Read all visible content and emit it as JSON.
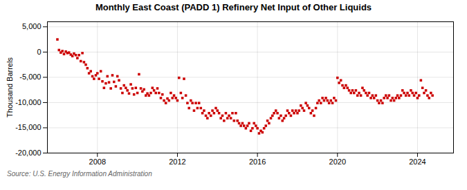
{
  "chart_data": {
    "type": "scatter",
    "title": "Monthly East Coast (PADD 1) Refinery Net Input of Other Liquids",
    "ylabel": "Thousand Barrels",
    "source": "Source: U.S. Energy Information Administration",
    "color": "#cc0000",
    "marker": "square",
    "grid": true,
    "xlim": [
      2005.5,
      2025.8
    ],
    "xticks": [
      2008,
      2012,
      2016,
      2020,
      2024
    ],
    "ylim": [
      -20000,
      6000
    ],
    "yticks": [
      {
        "value": -20000,
        "label": "-20,000"
      },
      {
        "value": -15000,
        "label": "-15,000"
      },
      {
        "value": -10000,
        "label": "-10,000"
      },
      {
        "value": -5000,
        "label": "-5,000"
      },
      0,
      {
        "value": 5000,
        "label": "5,000"
      }
    ],
    "x": [
      2006.0,
      2006.08,
      2006.17,
      2006.25,
      2006.33,
      2006.42,
      2006.5,
      2006.58,
      2006.67,
      2006.75,
      2006.83,
      2006.92,
      2007.0,
      2007.08,
      2007.17,
      2007.25,
      2007.33,
      2007.42,
      2007.5,
      2007.58,
      2007.67,
      2007.75,
      2007.83,
      2007.92,
      2008.0,
      2008.08,
      2008.17,
      2008.25,
      2008.33,
      2008.42,
      2008.5,
      2008.58,
      2008.67,
      2008.75,
      2008.83,
      2008.92,
      2009.0,
      2009.08,
      2009.17,
      2009.25,
      2009.33,
      2009.42,
      2009.5,
      2009.58,
      2009.67,
      2009.75,
      2009.83,
      2009.92,
      2010.0,
      2010.08,
      2010.17,
      2010.25,
      2010.33,
      2010.42,
      2010.5,
      2010.58,
      2010.67,
      2010.75,
      2010.83,
      2010.92,
      2011.0,
      2011.08,
      2011.17,
      2011.25,
      2011.33,
      2011.42,
      2011.5,
      2011.58,
      2011.67,
      2011.75,
      2011.83,
      2011.92,
      2012.0,
      2012.08,
      2012.17,
      2012.25,
      2012.33,
      2012.42,
      2012.5,
      2012.58,
      2012.67,
      2012.75,
      2012.83,
      2012.92,
      2013.0,
      2013.08,
      2013.17,
      2013.25,
      2013.33,
      2013.42,
      2013.5,
      2013.58,
      2013.67,
      2013.75,
      2013.83,
      2013.92,
      2014.0,
      2014.08,
      2014.17,
      2014.25,
      2014.33,
      2014.42,
      2014.5,
      2014.58,
      2014.67,
      2014.75,
      2014.83,
      2014.92,
      2015.0,
      2015.08,
      2015.17,
      2015.25,
      2015.33,
      2015.42,
      2015.5,
      2015.58,
      2015.67,
      2015.75,
      2015.83,
      2015.92,
      2016.0,
      2016.08,
      2016.17,
      2016.25,
      2016.33,
      2016.42,
      2016.5,
      2016.58,
      2016.67,
      2016.75,
      2016.83,
      2016.92,
      2017.0,
      2017.08,
      2017.17,
      2017.25,
      2017.33,
      2017.42,
      2017.5,
      2017.58,
      2017.67,
      2017.75,
      2017.83,
      2017.92,
      2018.0,
      2018.08,
      2018.17,
      2018.25,
      2018.33,
      2018.42,
      2018.5,
      2018.58,
      2018.67,
      2018.75,
      2018.83,
      2018.92,
      2019.0,
      2019.08,
      2019.17,
      2019.25,
      2019.33,
      2019.42,
      2019.5,
      2019.58,
      2019.67,
      2019.75,
      2019.83,
      2019.92,
      2020.0,
      2020.08,
      2020.17,
      2020.25,
      2020.33,
      2020.42,
      2020.5,
      2020.58,
      2020.67,
      2020.75,
      2020.83,
      2020.92,
      2021.0,
      2021.08,
      2021.17,
      2021.25,
      2021.33,
      2021.42,
      2021.5,
      2021.58,
      2021.67,
      2021.75,
      2021.83,
      2021.92,
      2022.0,
      2022.08,
      2022.17,
      2022.25,
      2022.33,
      2022.42,
      2022.5,
      2022.58,
      2022.67,
      2022.75,
      2022.83,
      2022.92,
      2023.0,
      2023.08,
      2023.17,
      2023.25,
      2023.33,
      2023.42,
      2023.5,
      2023.58,
      2023.67,
      2023.75,
      2023.83,
      2023.92,
      2024.0,
      2024.08,
      2024.17,
      2024.25,
      2024.33,
      2024.42,
      2024.5,
      2024.58,
      2024.67,
      2024.75
    ],
    "values": [
      2500,
      400,
      -100,
      200,
      -400,
      100,
      -200,
      -100,
      -500,
      -800,
      -300,
      -600,
      -1200,
      -600,
      -1800,
      -200,
      -2000,
      -2500,
      -3200,
      -4200,
      -3800,
      -4800,
      -5300,
      -4600,
      -4200,
      -5300,
      -3800,
      -5800,
      -7100,
      -6200,
      -4800,
      -6000,
      -7200,
      -4600,
      -5900,
      -6800,
      -4800,
      -5600,
      -7200,
      -8100,
      -6600,
      -7100,
      -7600,
      -8200,
      -6400,
      -7200,
      -8400,
      -7100,
      -8100,
      -4400,
      -7200,
      -7800,
      -7400,
      -8600,
      -8200,
      -8600,
      -8100,
      -7100,
      -7600,
      -8100,
      -7200,
      -8100,
      -9100,
      -8400,
      -9600,
      -10100,
      -9200,
      -9600,
      -8100,
      -9100,
      -8600,
      -9100,
      -9600,
      -5100,
      -8100,
      -9100,
      -5300,
      -8600,
      -10100,
      -11100,
      -9600,
      -10100,
      -11600,
      -10100,
      -11100,
      -10100,
      -11100,
      -12100,
      -11600,
      -12600,
      -13100,
      -12100,
      -12600,
      -11600,
      -12100,
      -11100,
      -11600,
      -12100,
      -13100,
      -12600,
      -13600,
      -12100,
      -13100,
      -12600,
      -13100,
      -12100,
      -13600,
      -12100,
      -13600,
      -14100,
      -14600,
      -14100,
      -14600,
      -15100,
      -14600,
      -14100,
      -15600,
      -15100,
      -14100,
      -14600,
      -15100,
      -16100,
      -15600,
      -15900,
      -15100,
      -14600,
      -13600,
      -14100,
      -13100,
      -12600,
      -12100,
      -11600,
      -12100,
      -13100,
      -12600,
      -13600,
      -13100,
      -12600,
      -11600,
      -12100,
      -12600,
      -11600,
      -12100,
      -11600,
      -12100,
      -11600,
      -10600,
      -11100,
      -11600,
      -10100,
      -10600,
      -11100,
      -12100,
      -11600,
      -12600,
      -11100,
      -10100,
      -9600,
      -10100,
      -9100,
      -9600,
      -9100,
      -9600,
      -10100,
      -9600,
      -10100,
      -9100,
      -9600,
      -5100,
      -6100,
      -5600,
      -6600,
      -7100,
      -6600,
      -7100,
      -7600,
      -8100,
      -7600,
      -8100,
      -7600,
      -8600,
      -8100,
      -8600,
      -7100,
      -7600,
      -8100,
      -8600,
      -8100,
      -9100,
      -8600,
      -9100,
      -8600,
      -9600,
      -10100,
      -9600,
      -10100,
      -9100,
      -8600,
      -9100,
      -8600,
      -9600,
      -9100,
      -9600,
      -9100,
      -8600,
      -9100,
      -8600,
      -7600,
      -8100,
      -8600,
      -8100,
      -8600,
      -7600,
      -8100,
      -8600,
      -8100,
      -9100,
      -8600,
      -5600,
      -7100,
      -8100,
      -7600,
      -8600,
      -9100,
      -8100,
      -8600
    ]
  }
}
